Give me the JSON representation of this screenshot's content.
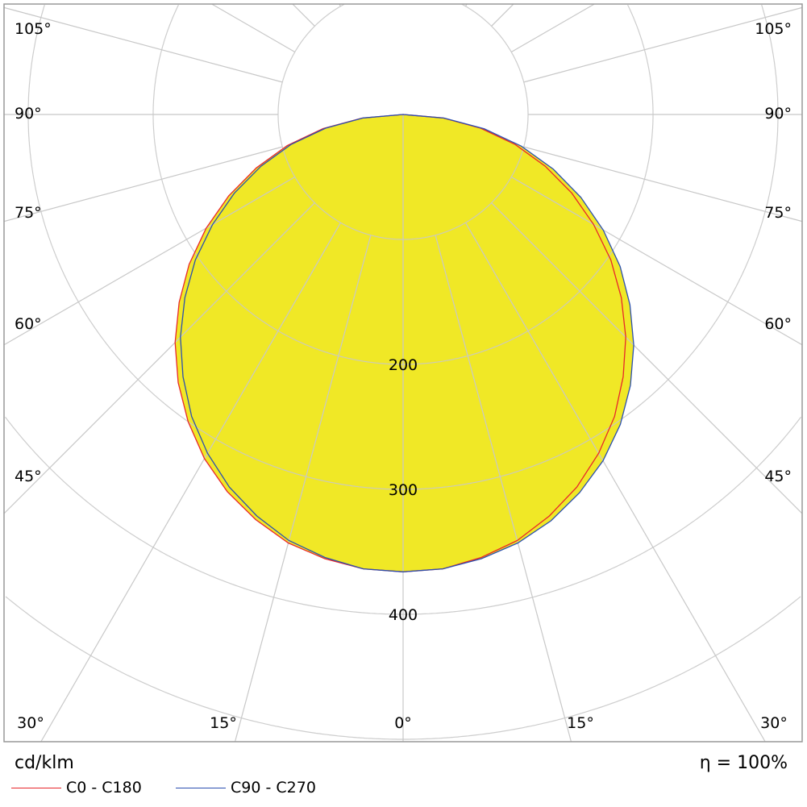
{
  "chart_data": {
    "type": "polar",
    "unit_label": "cd/klm",
    "efficiency_label": "η = 100%",
    "radial_ticks": [
      100,
      200,
      300,
      400,
      500,
      600
    ],
    "radial_tick_labels": [
      "200",
      "300",
      "400"
    ],
    "angle_step": 15,
    "angle_labels": {
      "bottom": [
        "30°",
        "15°",
        "0°",
        "15°",
        "30°"
      ],
      "sides": [
        "45°",
        "60°",
        "75°",
        "90°",
        "105°"
      ]
    },
    "grid": true,
    "fill_color": "#f0e826",
    "angles": [
      0,
      5,
      10,
      15,
      20,
      25,
      30,
      35,
      40,
      45,
      50,
      55,
      60,
      65,
      70,
      75,
      80,
      85,
      90
    ],
    "series": [
      {
        "name": "C0 - C180",
        "color": "#e8262a",
        "left": [
          366,
          365,
          361,
          355,
          345,
          333,
          318,
          300,
          280,
          258,
          234,
          209,
          182,
          154,
          125,
          96,
          65,
          33,
          0
        ],
        "right": [
          366,
          365,
          360,
          353,
          342,
          329,
          313,
          295,
          274,
          252,
          228,
          203,
          176,
          149,
          121,
          93,
          63,
          32,
          0
        ]
      },
      {
        "name": "C90 - C270",
        "color": "#2a4fb0",
        "left": [
          366,
          365,
          360,
          353,
          342,
          329,
          313,
          295,
          274,
          252,
          228,
          203,
          176,
          149,
          121,
          93,
          63,
          32,
          0
        ],
        "right": [
          366,
          365,
          361,
          355,
          346,
          334,
          320,
          303,
          283,
          261,
          237,
          212,
          185,
          157,
          128,
          98,
          66,
          33,
          0
        ]
      }
    ]
  }
}
